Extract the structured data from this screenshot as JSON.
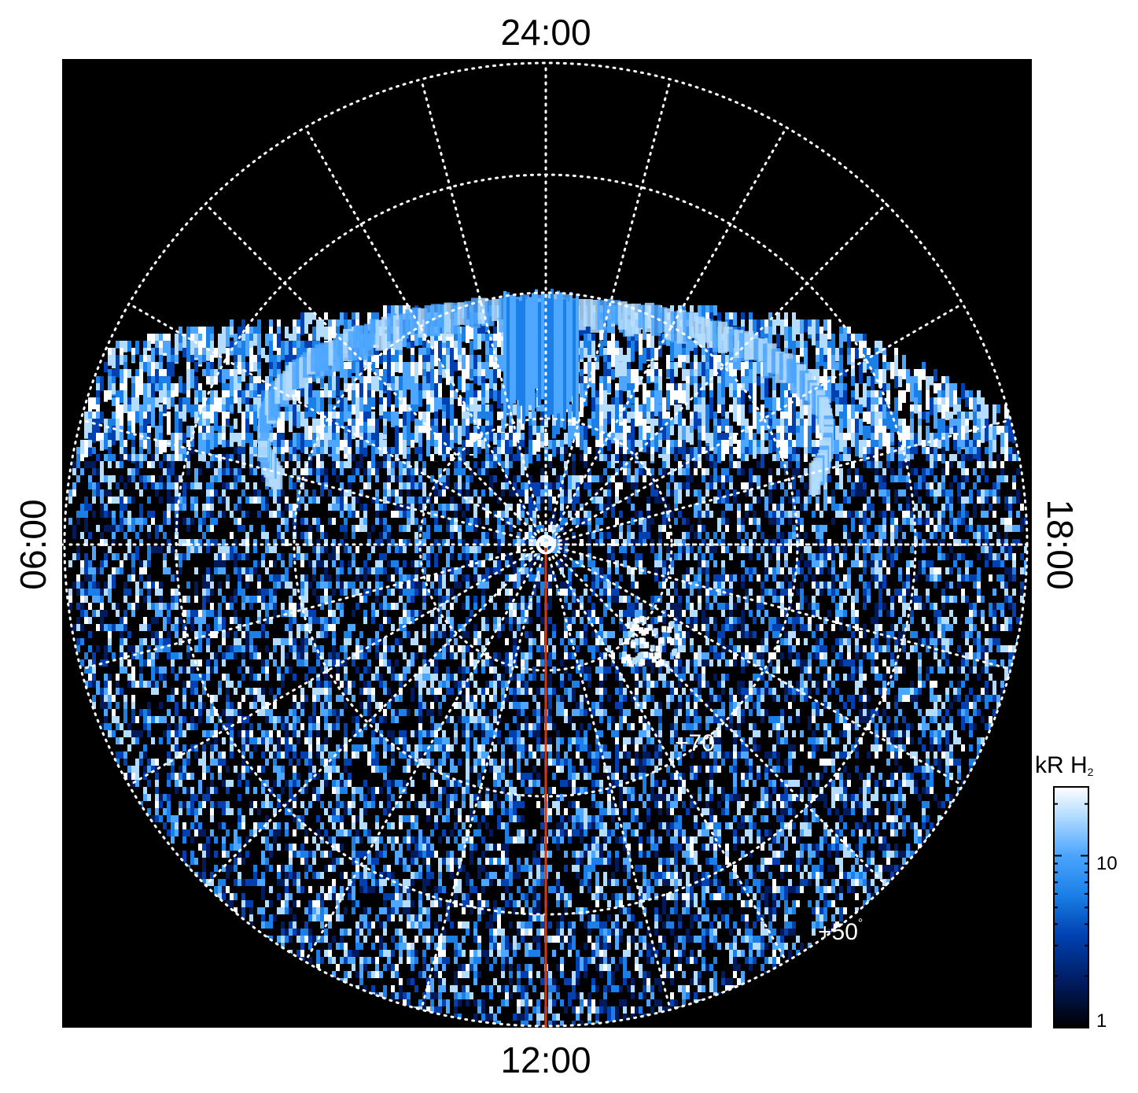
{
  "labels": {
    "lt_top": "24:00",
    "lt_bottom": "12:00",
    "lt_left": "06:00",
    "lt_right": "18:00"
  },
  "latitude_labels": {
    "lat70": "+70",
    "lat50": "+50",
    "degree": "°"
  },
  "colorbar": {
    "title_main": "kR H",
    "title_sub": "2",
    "ticks": [
      "10",
      "1"
    ],
    "colors": [
      "#000000",
      "#001a5c",
      "#0040b0",
      "#1a7fe6",
      "#4da6ff",
      "#b3dcff",
      "#ffffff"
    ]
  },
  "colors": {
    "background": "#000000",
    "grid": "#ffffff",
    "meridian_line": "#d23a10"
  }
}
